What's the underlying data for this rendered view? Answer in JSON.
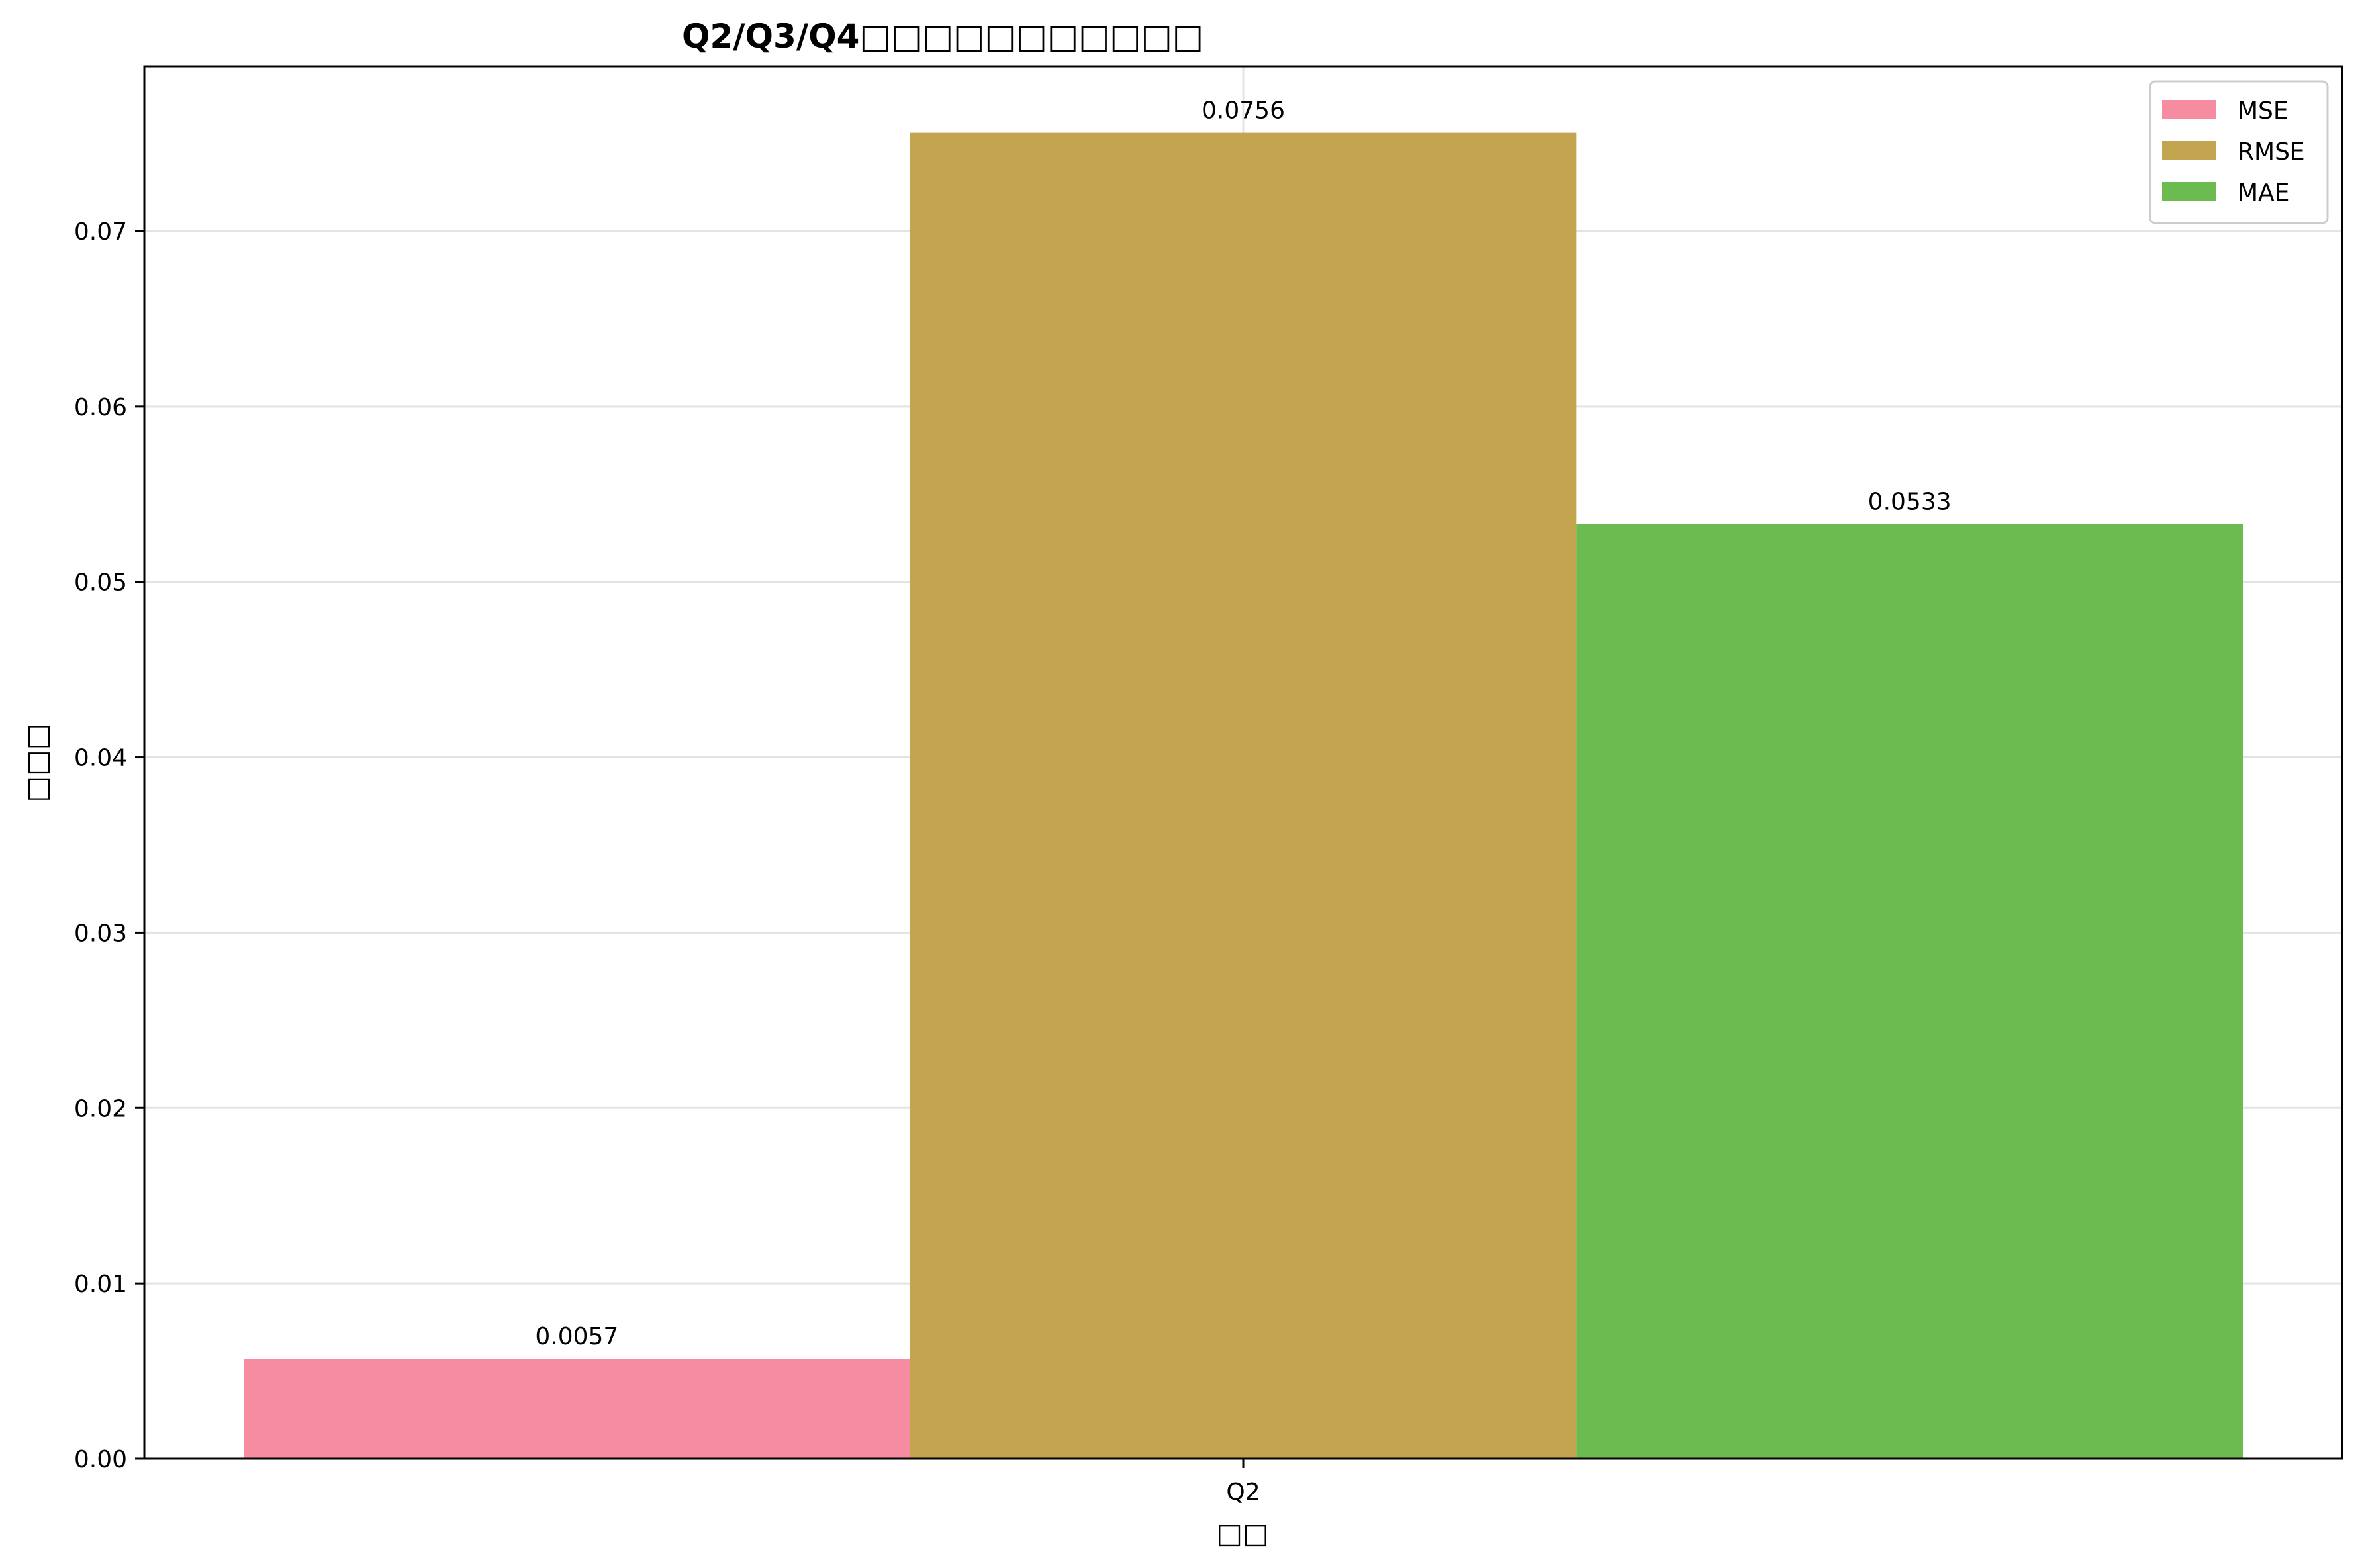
{
  "chart_data": {
    "type": "bar",
    "title": "Q2/Q3/Q4□□□□□□□□□□□",
    "xlabel": "□□",
    "ylabel": "□□□",
    "categories": [
      "Q2"
    ],
    "series": [
      {
        "name": "MSE",
        "values": [
          0.0057
        ],
        "label": "0.0057",
        "color": "#f68c9f"
      },
      {
        "name": "RMSE",
        "values": [
          0.0756
        ],
        "label": "0.0756",
        "color": "#c4a54f"
      },
      {
        "name": "MAE",
        "values": [
          0.0533
        ],
        "label": "0.0533",
        "color": "#6bbb50"
      }
    ],
    "ylim": [
      0,
      0.0794
    ],
    "yticks": [
      "0.00",
      "0.01",
      "0.02",
      "0.03",
      "0.04",
      "0.05",
      "0.06",
      "0.07"
    ],
    "grid": true,
    "legend": "top-right"
  }
}
